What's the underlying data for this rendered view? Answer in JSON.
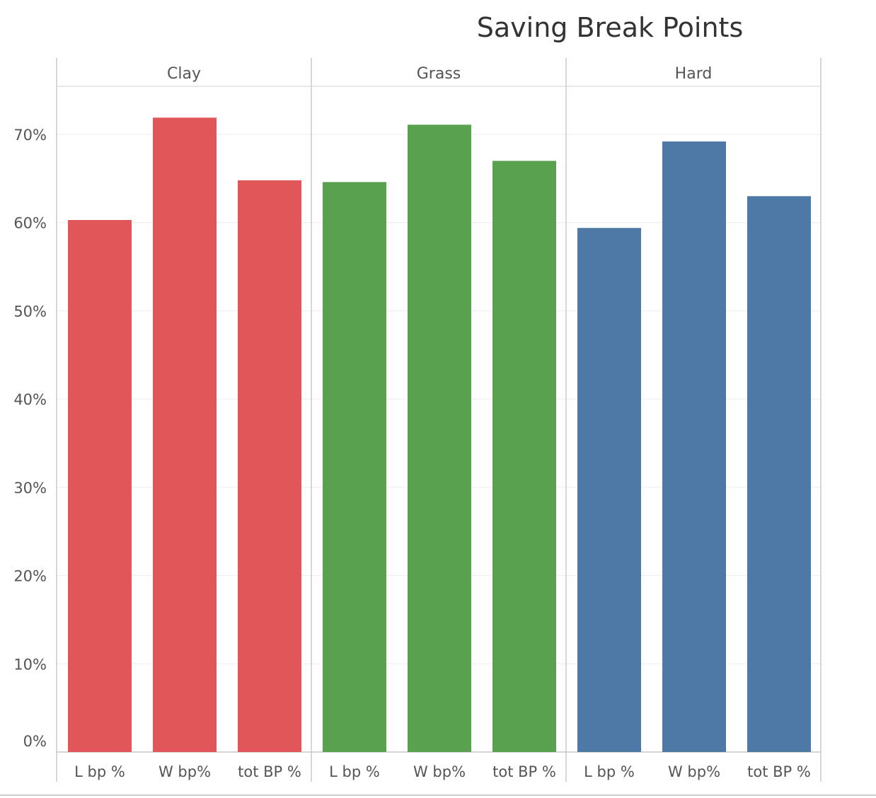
{
  "chart_data": {
    "type": "bar",
    "title": "Saving Break Points",
    "xlabel": "",
    "ylabel": "",
    "ylim": [
      0,
      0.7
    ],
    "yticks": [
      "0%",
      "10%",
      "20%",
      "30%",
      "40%",
      "50%",
      "60%",
      "70%"
    ],
    "grid": true,
    "categories": [
      "L bp %",
      "W bp%",
      "tot BP %"
    ],
    "panels": [
      {
        "name": "Clay",
        "color": "#e15759",
        "values": [
          0.603,
          0.719,
          0.648
        ]
      },
      {
        "name": "Grass",
        "color": "#59a14f",
        "values": [
          0.646,
          0.711,
          0.67
        ]
      },
      {
        "name": "Hard",
        "color": "#4e79a7",
        "values": [
          0.594,
          0.692,
          0.63
        ]
      }
    ]
  }
}
